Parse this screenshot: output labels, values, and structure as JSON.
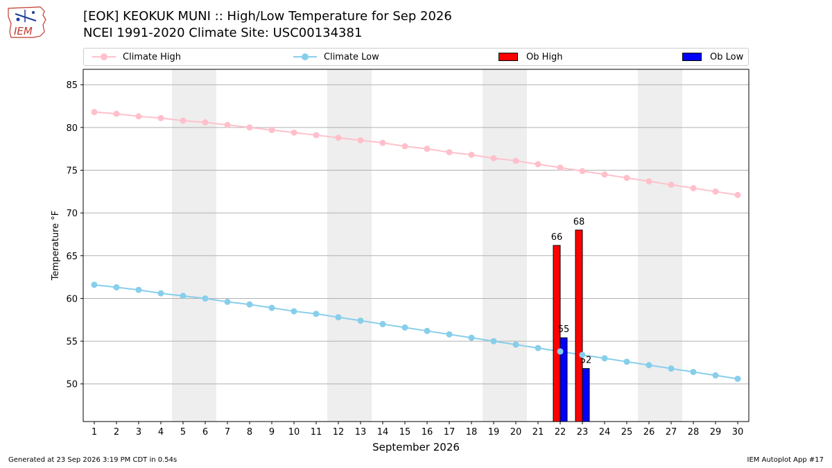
{
  "header": {
    "title_line1": "[EOK] KEOKUK MUNI :: High/Low Temperature for Sep 2026",
    "title_line2": "NCEI 1991-2020 Climate Site: USC00134381",
    "logo_text": "IEM"
  },
  "legend": {
    "items": [
      {
        "label": "Climate High",
        "color": "#ffc0cb",
        "kind": "line"
      },
      {
        "label": "Climate Low",
        "color": "#87ceeb",
        "kind": "line"
      },
      {
        "label": "Ob High",
        "color": "#ff0000",
        "kind": "box"
      },
      {
        "label": "Ob Low",
        "color": "#0000ff",
        "kind": "box"
      }
    ]
  },
  "footer": {
    "generated": "Generated at 23 Sep 2026 3:19 PM CDT in 0.54s",
    "app": "IEM Autoplot App #17"
  },
  "chart_data": {
    "type": "bar",
    "xlabel": "September 2026",
    "ylabel": "Temperature °F",
    "xlim": [
      0.5,
      30.5
    ],
    "ylim": [
      45.6,
      86.8
    ],
    "yticks": [
      50,
      55,
      60,
      65,
      70,
      75,
      80,
      85
    ],
    "xticks": [
      "1",
      "2",
      "3",
      "4",
      "5",
      "6",
      "7",
      "8",
      "9",
      "10",
      "11",
      "12",
      "13",
      "14",
      "15",
      "16",
      "17",
      "18",
      "19",
      "20",
      "21",
      "22",
      "23",
      "24",
      "25",
      "26",
      "27",
      "28",
      "29",
      "30"
    ],
    "grid": true,
    "legend_position": "top",
    "weekend_shading": [
      [
        4.5,
        6.5
      ],
      [
        11.5,
        13.5
      ],
      [
        18.5,
        20.5
      ],
      [
        25.5,
        27.5
      ]
    ],
    "series": [
      {
        "name": "Climate High",
        "type": "line",
        "color": "#ffc0cb",
        "x": [
          1,
          2,
          3,
          4,
          5,
          6,
          7,
          8,
          9,
          10,
          11,
          12,
          13,
          14,
          15,
          16,
          17,
          18,
          19,
          20,
          21,
          22,
          23,
          24,
          25,
          26,
          27,
          28,
          29,
          30
        ],
        "values": [
          81.8,
          81.6,
          81.3,
          81.1,
          80.8,
          80.6,
          80.3,
          80.0,
          79.7,
          79.4,
          79.1,
          78.8,
          78.5,
          78.2,
          77.8,
          77.5,
          77.1,
          76.8,
          76.4,
          76.1,
          75.7,
          75.3,
          74.9,
          74.5,
          74.1,
          73.7,
          73.3,
          72.9,
          72.5,
          72.1
        ]
      },
      {
        "name": "Climate Low",
        "type": "line",
        "color": "#87ceeb",
        "x": [
          1,
          2,
          3,
          4,
          5,
          6,
          7,
          8,
          9,
          10,
          11,
          12,
          13,
          14,
          15,
          16,
          17,
          18,
          19,
          20,
          21,
          22,
          23,
          24,
          25,
          26,
          27,
          28,
          29,
          30
        ],
        "values": [
          61.6,
          61.3,
          61.0,
          60.6,
          60.3,
          60.0,
          59.6,
          59.3,
          58.9,
          58.5,
          58.2,
          57.8,
          57.4,
          57.0,
          56.6,
          56.2,
          55.8,
          55.4,
          55.0,
          54.6,
          54.2,
          53.8,
          53.4,
          53.0,
          52.6,
          52.2,
          51.8,
          51.4,
          51.0,
          50.6
        ]
      },
      {
        "name": "Ob High",
        "type": "bar",
        "color": "#ff0000",
        "x": [
          22,
          23
        ],
        "values": [
          66.2,
          68.0
        ],
        "labels": [
          "66",
          "68"
        ]
      },
      {
        "name": "Ob Low",
        "type": "bar",
        "color": "#0000ff",
        "x": [
          22,
          23
        ],
        "values": [
          55.4,
          51.8
        ],
        "labels": [
          "55",
          "52"
        ]
      }
    ]
  }
}
